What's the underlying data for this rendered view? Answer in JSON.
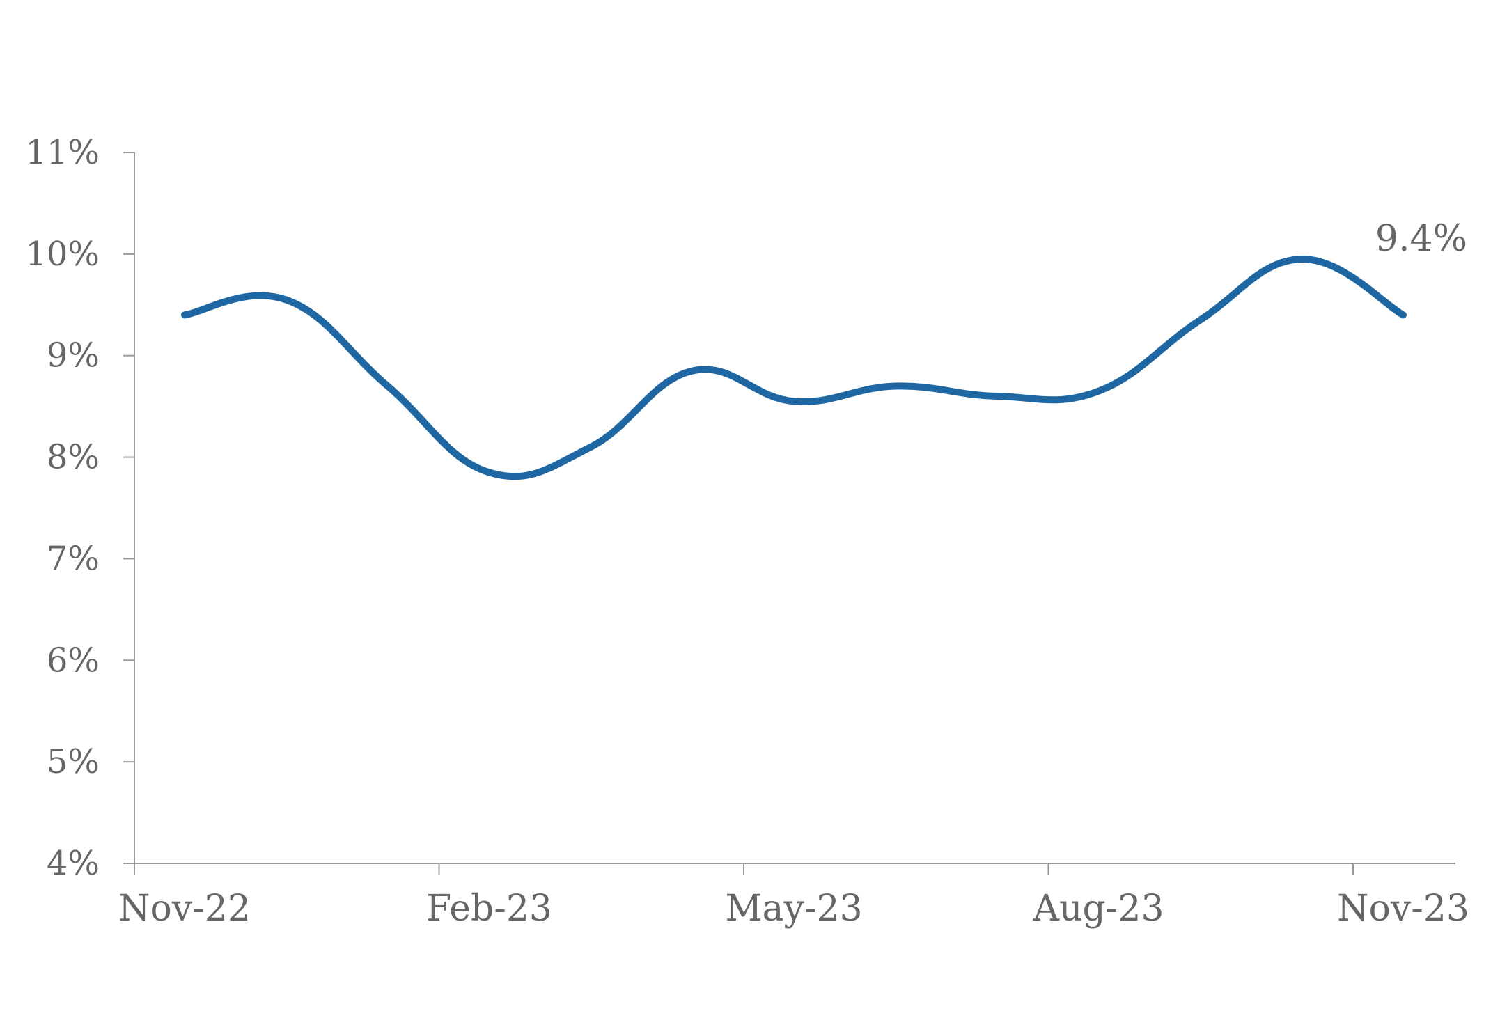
{
  "chart_data": {
    "type": "line",
    "title": "",
    "xlabel": "",
    "ylabel": "",
    "x_tick_labels": [
      "Nov-22",
      "Feb-23",
      "May-23",
      "Aug-23",
      "Nov-23"
    ],
    "y_tick_labels": [
      "4%",
      "5%",
      "6%",
      "7%",
      "8%",
      "9%",
      "10%",
      "11%"
    ],
    "ylim": [
      4,
      11
    ],
    "grid": false,
    "legend": "none",
    "end_label": "9.4%",
    "series": [
      {
        "color": "#1f67a2",
        "points": [
          {
            "x": "Nov-22",
            "y": 9.4
          },
          {
            "x": "Dec-22",
            "y": 9.55
          },
          {
            "x": "Jan-23",
            "y": 8.7
          },
          {
            "x": "Feb-23",
            "y": 7.85
          },
          {
            "x": "Mar-23",
            "y": 8.1
          },
          {
            "x": "Apr-23",
            "y": 8.85
          },
          {
            "x": "May-23",
            "y": 8.55
          },
          {
            "x": "Jun-23",
            "y": 8.7
          },
          {
            "x": "Jul-23",
            "y": 8.6
          },
          {
            "x": "Aug-23",
            "y": 8.65
          },
          {
            "x": "Sep-23",
            "y": 9.35
          },
          {
            "x": "Oct-23",
            "y": 9.95
          },
          {
            "x": "Nov-23",
            "y": 9.4
          }
        ]
      }
    ]
  }
}
